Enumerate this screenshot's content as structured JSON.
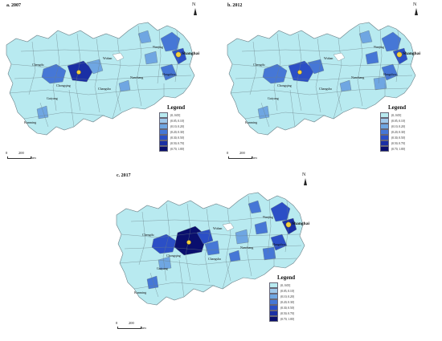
{
  "panels": [
    {
      "id": "a",
      "title": "a. 2007"
    },
    {
      "id": "b",
      "title": "b. 2012"
    },
    {
      "id": "c",
      "title": "c. 2017"
    }
  ],
  "north_label": "N",
  "legend": {
    "title": "Legend",
    "items": [
      {
        "label": "(0, 0.05]",
        "color": "#b8eaf0"
      },
      {
        "label": "(0.05, 0.10]",
        "color": "#9fc8ea"
      },
      {
        "label": "(0.10, 0.20]",
        "color": "#6fa6e2"
      },
      {
        "label": "(0.20, 0.30]",
        "color": "#4677d6"
      },
      {
        "label": "(0.30, 0.50]",
        "color": "#2b4fc6"
      },
      {
        "label": "(0.50, 0.70]",
        "color": "#1a2fa5"
      },
      {
        "label": "(0.70, 1.00]",
        "color": "#0a0f6e"
      }
    ]
  },
  "scale": {
    "zero": "0",
    "value": "200",
    "unit": "km"
  },
  "cities": {
    "shanghai": "Shanghai",
    "chongqing": "Chongqing",
    "chengdu": "Chengdu",
    "wuhan": "Wuhan",
    "changsha": "Changsha",
    "nanchang": "Nanchang",
    "hangzhou": "Hangzhou",
    "guiyang": "Guiyang",
    "kunming": "Kunming",
    "nanjing": "Nanjing"
  },
  "colors": {
    "base": "#b8eaf0",
    "border": "#6a7f86",
    "lake": "#ffffff",
    "marker": "#f4d03f"
  }
}
